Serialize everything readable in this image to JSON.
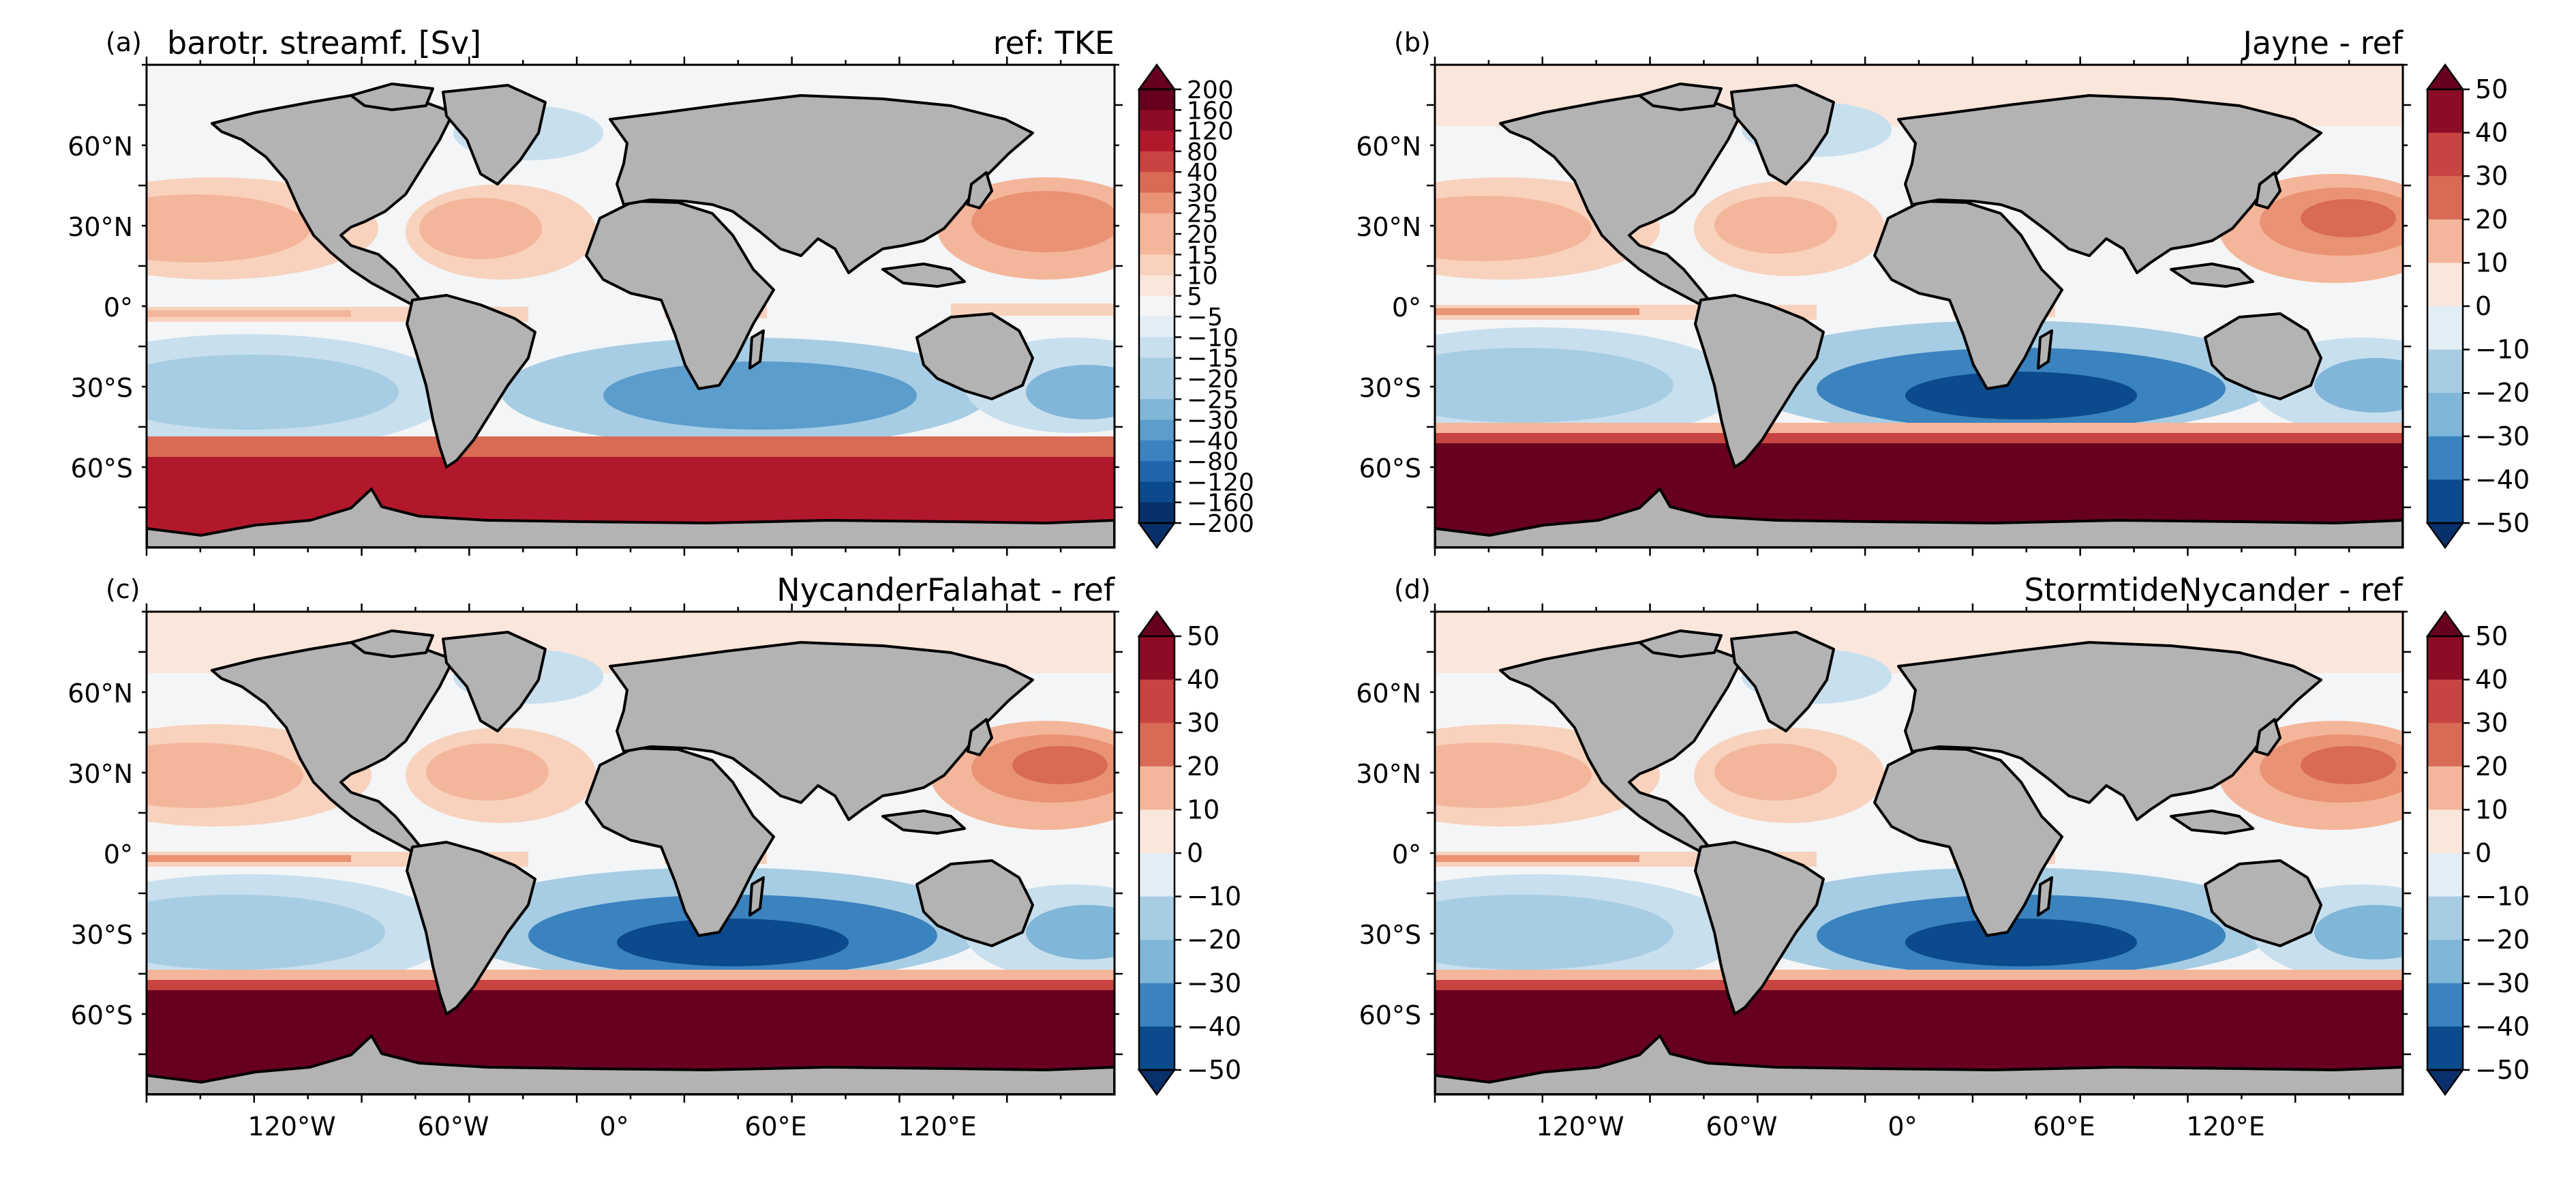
{
  "figure": {
    "colors": {
      "land": "#b3b3b3",
      "coast": "#000000",
      "neutral": "#f4f5f6",
      "cmap": [
        "#08306b",
        "#0b4a8c",
        "#2166ac",
        "#3a83bf",
        "#5b9dcc",
        "#80b6d8",
        "#a7cde4",
        "#c8dfee",
        "#e2edf5",
        "#f4f5f6",
        "#fbe6dc",
        "#f8d2bd",
        "#f4b69b",
        "#ea9274",
        "#d96a55",
        "#c84440",
        "#b2182b",
        "#8c0c25",
        "#67001f"
      ]
    },
    "lat_ticks": [
      "60°N",
      "30°N",
      "0°",
      "30°S",
      "60°S"
    ],
    "lon_ticks": [
      "120°W",
      "60°W",
      "0°",
      "60°E",
      "120°E"
    ],
    "panels": [
      {
        "id": "a",
        "label": "(a)",
        "title_left": "barotr. streamf. [Sv]",
        "title_right": "ref: TKE",
        "colorbar_labels": [
          "200",
          "160",
          "120",
          "80",
          "40",
          "30",
          "25",
          "20",
          "15",
          "10",
          "5",
          "−5",
          "−10",
          "−15",
          "−20",
          "−25",
          "−30",
          "−40",
          "−80",
          "−120",
          "−160",
          "−200"
        ]
      },
      {
        "id": "b",
        "label": "(b)",
        "title_left": "",
        "title_right": "Jayne - ref",
        "colorbar_labels": [
          "50",
          "40",
          "30",
          "20",
          "10",
          "0",
          "−10",
          "−20",
          "−30",
          "−40",
          "−50"
        ]
      },
      {
        "id": "c",
        "label": "(c)",
        "title_left": "",
        "title_right": "NycanderFalahat - ref",
        "colorbar_labels": [
          "50",
          "40",
          "30",
          "20",
          "10",
          "0",
          "−10",
          "−20",
          "−30",
          "−40",
          "−50"
        ]
      },
      {
        "id": "d",
        "label": "(d)",
        "title_left": "",
        "title_right": "StormtideNycander - ref",
        "colorbar_labels": [
          "50",
          "40",
          "30",
          "20",
          "10",
          "0",
          "−10",
          "−20",
          "−30",
          "−40",
          "−50"
        ]
      }
    ]
  }
}
